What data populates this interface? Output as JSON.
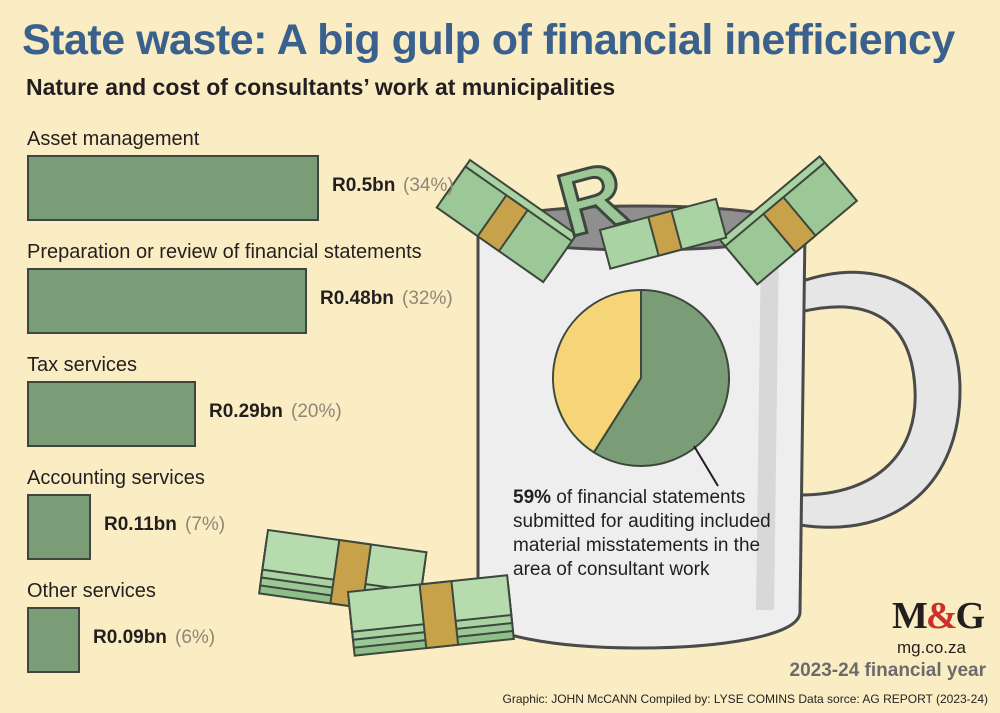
{
  "title": "State waste: A big gulp of financial inefficiency",
  "subtitle": "Nature and cost of consultants’ work at municipalities",
  "chart_data": [
    {
      "type": "bar",
      "orientation": "horizontal",
      "categories": [
        "Asset management",
        "Preparation or review of financial statements",
        "Tax services",
        "Accounting services",
        "Other services"
      ],
      "values": [
        0.5,
        0.48,
        0.29,
        0.11,
        0.09
      ],
      "value_labels": [
        "R0.5bn",
        "R0.48bn",
        "R0.29bn",
        "R0.11bn",
        "R0.09bn"
      ],
      "percent_labels": [
        "(34%)",
        "(32%)",
        "(20%)",
        "(7%)",
        "(6%)"
      ],
      "unit": "R billion"
    },
    {
      "type": "pie",
      "values": [
        59,
        41
      ],
      "colors": [
        "#7a9c76",
        "#f5d577"
      ],
      "caption_bold": "59%",
      "caption": " of financial statements submitted for auditing included material misstatements in the area of consultant work"
    }
  ],
  "colors": {
    "bar": "#7a9c76",
    "title": "#3a618e",
    "background": "#fbedc3",
    "pie_minor": "#f5d577"
  },
  "logo": {
    "left": "M",
    "amp": "&",
    "right": "G"
  },
  "url": "mg.co.za",
  "financial_year": "2023-24 financial year",
  "credits": "Graphic: JOHN McCANN  Compiled by: LYSE COMINS  Data sorce: AG REPORT (2023-24)"
}
